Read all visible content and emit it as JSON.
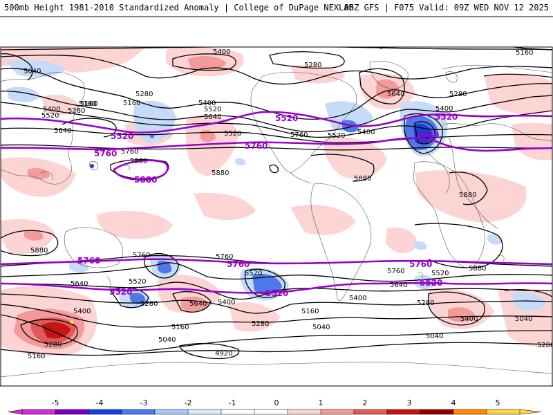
{
  "header": {
    "title_left": "500mb Height 1981-2010 Standardized Anomaly | College of DuPage NEXLAB",
    "title_right": "06Z GFS | F075 Valid: 09Z WED NOV 12 2025"
  },
  "colorbar": {
    "ticks": [
      "-5",
      "-4",
      "-3",
      "-2",
      "-1",
      "0",
      "1",
      "2",
      "3",
      "4",
      "5"
    ],
    "colors": [
      "#cc33cc",
      "#7a00b8",
      "#1a3fd6",
      "#4f78e8",
      "#a9c8f5",
      "#dceafc",
      "#ffffff",
      "#ffffff",
      "#fcd4d4",
      "#f59a9a",
      "#e05a5a",
      "#c41414",
      "#8a0000",
      "#ff8c00",
      "#ffd24d"
    ]
  },
  "map": {
    "height_labels": [
      "5400",
      "5040",
      "5280",
      "5160",
      "5280",
      "5400",
      "5520",
      "5640",
      "5280",
      "5160",
      "5640",
      "5280",
      "5400",
      "5520",
      "5640",
      "5880",
      "5760",
      "5880",
      "5520",
      "5400",
      "5160",
      "5880",
      "5880",
      "5760",
      "5760",
      "5640",
      "5520",
      "5400",
      "5280",
      "5160",
      "5040",
      "4920",
      "5640",
      "5520",
      "5400",
      "5280",
      "5160",
      "5040",
      "5400",
      "5280",
      "5160",
      "5880",
      "5520",
      "5760",
      "5640",
      "5280",
      "5760",
      "5520",
      "5400",
      "5160",
      "5040",
      "5400",
      "5040",
      "5280",
      "5880"
    ],
    "purple_labels": [
      "5520",
      "5760",
      "5880",
      "5520",
      "5760",
      "5520",
      "5760",
      "5760",
      "5760",
      "5520",
      "5520",
      "5760",
      "5520"
    ]
  }
}
